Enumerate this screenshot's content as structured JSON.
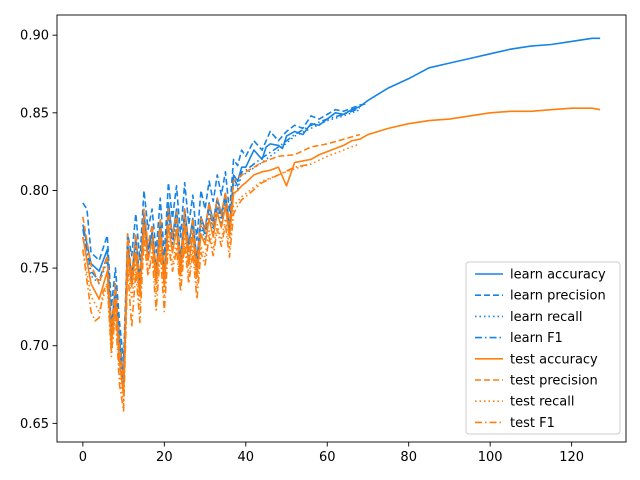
{
  "chart_data": {
    "type": "line",
    "title": "",
    "xlabel": "",
    "ylabel": "",
    "xlim": [
      -6.35,
      133.35
    ],
    "ylim": [
      0.638,
      0.913
    ],
    "xticks": [
      0,
      20,
      40,
      60,
      80,
      100,
      120
    ],
    "yticks": [
      0.65,
      0.7,
      0.75,
      0.8,
      0.85,
      0.9
    ],
    "ytick_labels": [
      "0.65",
      "0.70",
      "0.75",
      "0.80",
      "0.85",
      "0.90"
    ],
    "grid": false,
    "legend_position": "lower-right",
    "colors": {
      "learn": "#1f77b4",
      "test": "#ff7f0e",
      "learn_render": "#1683e6",
      "test_render": "#ff7f0e"
    },
    "legend": [
      {
        "label": "learn accuracy",
        "color": "learn",
        "dash": "solid"
      },
      {
        "label": "learn precision",
        "color": "learn",
        "dash": "dashed"
      },
      {
        "label": "learn recall",
        "color": "learn",
        "dash": "dotted"
      },
      {
        "label": "learn F1",
        "color": "learn",
        "dash": "dashdot"
      },
      {
        "label": "test accuracy",
        "color": "test",
        "dash": "solid"
      },
      {
        "label": "test precision",
        "color": "test",
        "dash": "dashed"
      },
      {
        "label": "test recall",
        "color": "test",
        "dash": "dotted"
      },
      {
        "label": "test F1",
        "color": "test",
        "dash": "dashdot"
      }
    ],
    "series": [
      {
        "name": "learn accuracy",
        "color": "learn",
        "dash": "solid",
        "x": [
          0,
          2,
          4,
          6,
          7,
          8,
          9,
          10,
          11,
          12,
          13,
          14,
          15,
          16,
          17,
          18,
          19,
          20,
          21,
          22,
          23,
          24,
          25,
          26,
          27,
          28,
          29,
          30,
          31,
          32,
          33,
          34,
          35,
          36,
          37,
          38,
          39,
          40,
          42,
          44,
          45,
          46,
          48,
          49,
          50,
          52,
          54,
          56,
          58,
          60,
          62,
          64,
          66,
          68,
          70,
          75,
          80,
          85,
          90,
          95,
          100,
          105,
          110,
          115,
          120,
          125,
          127
        ],
        "y": [
          0.778,
          0.753,
          0.748,
          0.762,
          0.712,
          0.738,
          0.705,
          0.678,
          0.765,
          0.745,
          0.77,
          0.742,
          0.785,
          0.762,
          0.773,
          0.748,
          0.78,
          0.745,
          0.792,
          0.77,
          0.788,
          0.755,
          0.788,
          0.765,
          0.782,
          0.755,
          0.783,
          0.775,
          0.792,
          0.78,
          0.795,
          0.785,
          0.798,
          0.775,
          0.81,
          0.806,
          0.815,
          0.815,
          0.826,
          0.82,
          0.828,
          0.83,
          0.829,
          0.827,
          0.835,
          0.838,
          0.836,
          0.843,
          0.842,
          0.846,
          0.85,
          0.849,
          0.852,
          0.854,
          0.858,
          0.866,
          0.872,
          0.879,
          0.882,
          0.885,
          0.888,
          0.891,
          0.893,
          0.894,
          0.896,
          0.898,
          0.898
        ]
      },
      {
        "name": "learn precision",
        "color": "learn",
        "dash": "dashed",
        "x": [
          0,
          1,
          2,
          4,
          6,
          7,
          8,
          9,
          10,
          11,
          12,
          13,
          14,
          15,
          16,
          17,
          18,
          19,
          20,
          21,
          22,
          23,
          24,
          25,
          26,
          27,
          28,
          29,
          30,
          31,
          32,
          33,
          34,
          35,
          36,
          37,
          38,
          39,
          40,
          42,
          44,
          46,
          48,
          50,
          52,
          54,
          56,
          58,
          60,
          62,
          64,
          66,
          68,
          70
        ],
        "y": [
          0.792,
          0.788,
          0.76,
          0.755,
          0.771,
          0.725,
          0.75,
          0.715,
          0.69,
          0.772,
          0.758,
          0.785,
          0.755,
          0.8,
          0.775,
          0.788,
          0.76,
          0.795,
          0.758,
          0.805,
          0.782,
          0.803,
          0.77,
          0.805,
          0.778,
          0.797,
          0.768,
          0.8,
          0.788,
          0.806,
          0.793,
          0.81,
          0.797,
          0.812,
          0.786,
          0.82,
          0.816,
          0.826,
          0.822,
          0.832,
          0.826,
          0.838,
          0.832,
          0.838,
          0.842,
          0.84,
          0.848,
          0.846,
          0.849,
          0.852,
          0.851,
          0.853,
          0.855,
          0.856
        ]
      },
      {
        "name": "learn recall",
        "color": "learn",
        "dash": "dotted",
        "x": [
          0,
          2,
          4,
          6,
          7,
          8,
          9,
          10,
          11,
          12,
          13,
          14,
          15,
          16,
          17,
          18,
          19,
          20,
          21,
          22,
          23,
          24,
          25,
          26,
          27,
          28,
          29,
          30,
          31,
          32,
          33,
          34,
          35,
          36,
          37,
          38,
          39,
          40,
          44,
          48,
          52,
          56,
          60,
          64,
          68
        ],
        "y": [
          0.77,
          0.745,
          0.74,
          0.755,
          0.705,
          0.73,
          0.698,
          0.672,
          0.758,
          0.738,
          0.764,
          0.735,
          0.778,
          0.755,
          0.767,
          0.742,
          0.773,
          0.739,
          0.785,
          0.763,
          0.781,
          0.748,
          0.782,
          0.758,
          0.776,
          0.748,
          0.777,
          0.768,
          0.786,
          0.773,
          0.789,
          0.778,
          0.792,
          0.77,
          0.805,
          0.801,
          0.81,
          0.811,
          0.818,
          0.826,
          0.835,
          0.84,
          0.845,
          0.848,
          0.852
        ]
      },
      {
        "name": "learn F1",
        "color": "learn",
        "dash": "dashdot",
        "x": [
          0,
          2,
          4,
          6,
          7,
          8,
          9,
          10,
          11,
          12,
          13,
          14,
          15,
          16,
          17,
          18,
          19,
          20,
          21,
          22,
          23,
          24,
          25,
          26,
          27,
          28,
          29,
          30,
          31,
          32,
          33,
          34,
          35,
          36,
          37,
          38,
          39,
          40,
          44,
          48,
          52,
          56,
          60,
          64,
          68
        ],
        "y": [
          0.775,
          0.748,
          0.742,
          0.758,
          0.708,
          0.733,
          0.7,
          0.675,
          0.762,
          0.741,
          0.767,
          0.738,
          0.781,
          0.758,
          0.77,
          0.745,
          0.776,
          0.742,
          0.788,
          0.766,
          0.784,
          0.751,
          0.785,
          0.761,
          0.779,
          0.751,
          0.78,
          0.771,
          0.789,
          0.776,
          0.792,
          0.781,
          0.795,
          0.772,
          0.808,
          0.803,
          0.812,
          0.813,
          0.821,
          0.828,
          0.836,
          0.842,
          0.846,
          0.849,
          0.853
        ]
      },
      {
        "name": "test accuracy",
        "color": "test",
        "dash": "solid",
        "x": [
          0,
          2,
          4,
          6,
          7,
          8,
          9,
          10,
          11,
          12,
          13,
          14,
          15,
          16,
          17,
          18,
          19,
          20,
          21,
          22,
          23,
          24,
          25,
          26,
          27,
          28,
          29,
          30,
          31,
          32,
          33,
          34,
          35,
          36,
          37,
          38,
          39,
          40,
          42,
          44,
          46,
          48,
          50,
          52,
          54,
          56,
          58,
          60,
          62,
          64,
          66,
          68,
          70,
          75,
          80,
          85,
          90,
          95,
          100,
          105,
          110,
          115,
          120,
          125,
          127
        ],
        "y": [
          0.77,
          0.74,
          0.73,
          0.748,
          0.7,
          0.73,
          0.69,
          0.668,
          0.76,
          0.738,
          0.76,
          0.732,
          0.778,
          0.755,
          0.768,
          0.74,
          0.772,
          0.738,
          0.778,
          0.76,
          0.775,
          0.745,
          0.778,
          0.752,
          0.772,
          0.744,
          0.772,
          0.765,
          0.782,
          0.77,
          0.786,
          0.776,
          0.79,
          0.77,
          0.798,
          0.8,
          0.803,
          0.805,
          0.81,
          0.812,
          0.813,
          0.815,
          0.803,
          0.818,
          0.819,
          0.82,
          0.823,
          0.825,
          0.827,
          0.829,
          0.832,
          0.833,
          0.836,
          0.84,
          0.843,
          0.845,
          0.846,
          0.848,
          0.85,
          0.851,
          0.851,
          0.852,
          0.853,
          0.853,
          0.852
        ]
      },
      {
        "name": "test precision",
        "color": "test",
        "dash": "dashed",
        "x": [
          0,
          2,
          4,
          6,
          7,
          8,
          9,
          10,
          11,
          12,
          13,
          14,
          15,
          16,
          17,
          18,
          19,
          20,
          21,
          22,
          23,
          24,
          25,
          26,
          27,
          28,
          29,
          30,
          31,
          32,
          33,
          34,
          35,
          36,
          37,
          38,
          39,
          40,
          44,
          48,
          52,
          56,
          60,
          64,
          68
        ],
        "y": [
          0.783,
          0.752,
          0.74,
          0.758,
          0.71,
          0.74,
          0.7,
          0.678,
          0.772,
          0.745,
          0.772,
          0.74,
          0.788,
          0.765,
          0.778,
          0.748,
          0.782,
          0.746,
          0.788,
          0.77,
          0.786,
          0.753,
          0.788,
          0.76,
          0.782,
          0.752,
          0.782,
          0.774,
          0.792,
          0.778,
          0.795,
          0.784,
          0.799,
          0.778,
          0.806,
          0.808,
          0.81,
          0.812,
          0.818,
          0.822,
          0.823,
          0.828,
          0.83,
          0.833,
          0.836
        ]
      },
      {
        "name": "test recall",
        "color": "test",
        "dash": "dotted",
        "x": [
          0,
          2,
          4,
          6,
          7,
          8,
          9,
          10,
          11,
          12,
          13,
          14,
          15,
          16,
          17,
          18,
          19,
          20,
          21,
          22,
          23,
          24,
          25,
          26,
          27,
          28,
          29,
          30,
          31,
          32,
          33,
          34,
          35,
          36,
          37,
          38,
          39,
          40,
          44,
          48,
          52,
          56,
          60,
          64,
          68
        ],
        "y": [
          0.762,
          0.732,
          0.722,
          0.74,
          0.693,
          0.722,
          0.683,
          0.662,
          0.752,
          0.73,
          0.752,
          0.725,
          0.77,
          0.748,
          0.76,
          0.733,
          0.764,
          0.731,
          0.77,
          0.752,
          0.767,
          0.738,
          0.77,
          0.745,
          0.764,
          0.737,
          0.764,
          0.757,
          0.774,
          0.762,
          0.778,
          0.768,
          0.782,
          0.762,
          0.79,
          0.793,
          0.796,
          0.798,
          0.806,
          0.81,
          0.814,
          0.817,
          0.822,
          0.826,
          0.83
        ]
      },
      {
        "name": "test F1",
        "color": "test",
        "dash": "dashdot",
        "x": [
          0,
          2,
          3,
          4,
          5,
          6,
          7,
          8,
          9,
          10,
          11,
          12,
          13,
          14,
          15,
          16,
          17,
          18,
          19,
          20,
          21,
          22,
          23,
          24,
          25,
          26,
          27,
          28,
          29,
          30,
          31,
          32,
          33,
          34,
          35,
          36,
          37,
          38,
          39,
          40,
          44,
          48,
          52,
          56
        ],
        "y": [
          0.762,
          0.722,
          0.716,
          0.718,
          0.735,
          0.74,
          0.695,
          0.72,
          0.675,
          0.658,
          0.75,
          0.712,
          0.748,
          0.715,
          0.768,
          0.745,
          0.758,
          0.723,
          0.76,
          0.722,
          0.765,
          0.748,
          0.762,
          0.735,
          0.765,
          0.74,
          0.76,
          0.73,
          0.76,
          0.752,
          0.77,
          0.758,
          0.775,
          0.764,
          0.778,
          0.757,
          0.785,
          0.79,
          0.794,
          0.796,
          0.805,
          0.81,
          0.815,
          0.817
        ]
      }
    ]
  }
}
